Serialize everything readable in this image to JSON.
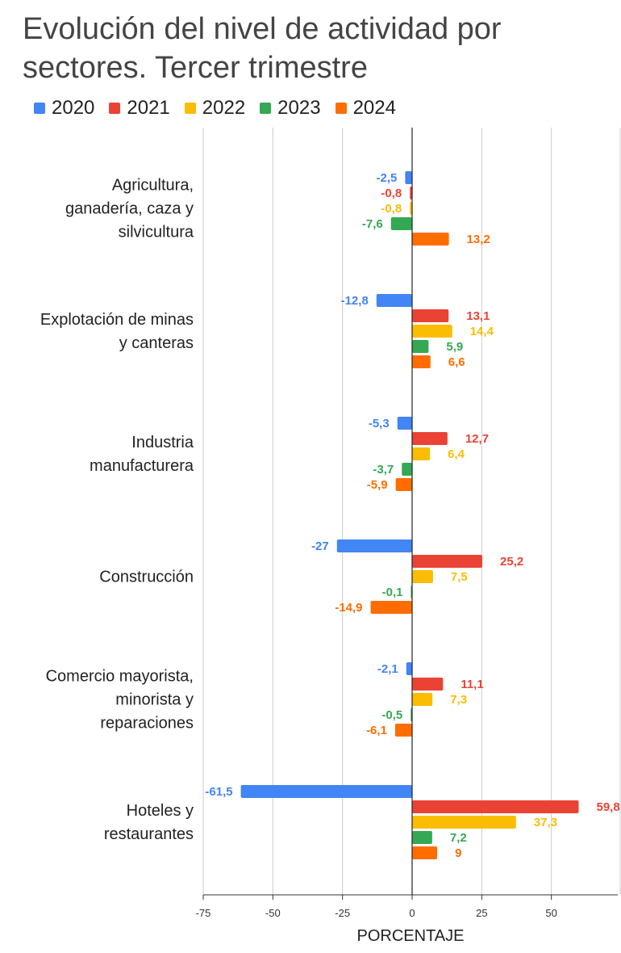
{
  "chart_data": {
    "type": "bar",
    "orientation": "horizontal",
    "title": "Evolución del nivel de actividad por sectores. Tercer trimestre",
    "xlabel": "PORCENTAJE",
    "ylabel": "",
    "xlim": [
      -75,
      75
    ],
    "xticks": [
      "-75",
      "-50",
      "-25",
      "0",
      "25",
      "50"
    ],
    "grid": "vertical",
    "legend_position": "top",
    "categories": [
      [
        "Agricultura,",
        "ganadería, caza y",
        "silvicultura"
      ],
      [
        "Explotación de minas",
        "y canteras"
      ],
      [
        "Industria",
        "manufacturera"
      ],
      [
        "Construcción"
      ],
      [
        "Comercio mayorista,",
        "minorista y",
        "reparaciones"
      ],
      [
        "Hoteles y",
        "restaurantes"
      ]
    ],
    "series": [
      {
        "name": "2020",
        "color": "#4285F4",
        "values": [
          -2.5,
          -12.8,
          -5.3,
          -27,
          -2.1,
          -61.5
        ],
        "labels": [
          "-2,5",
          "-12,8",
          "-5,3",
          "-27",
          "-2,1",
          "-61,5"
        ]
      },
      {
        "name": "2021",
        "color": "#EA4335",
        "values": [
          -0.8,
          13.1,
          12.7,
          25.2,
          11.1,
          59.8
        ],
        "labels": [
          "-0,8",
          "13,1",
          "12,7",
          "25,2",
          "11,1",
          "59,8"
        ]
      },
      {
        "name": "2022",
        "color": "#FBBC04",
        "values": [
          -0.8,
          14.4,
          6.4,
          7.5,
          7.3,
          37.3
        ],
        "labels": [
          "-0,8",
          "14,4",
          "6,4",
          "7,5",
          "7,3",
          "37,3"
        ]
      },
      {
        "name": "2023",
        "color": "#34A853",
        "values": [
          -7.6,
          5.9,
          -3.7,
          -0.1,
          -0.5,
          7.2
        ],
        "labels": [
          "-7,6",
          "5,9",
          "-3,7",
          "-0,1",
          "-0,5",
          "7,2"
        ]
      },
      {
        "name": "2024",
        "color": "#FF6D01",
        "values": [
          13.2,
          6.6,
          -5.9,
          -14.9,
          -6.1,
          9
        ],
        "labels": [
          "13,2",
          "6,6",
          "-5,9",
          "-14,9",
          "-6,1",
          "9"
        ]
      }
    ]
  }
}
